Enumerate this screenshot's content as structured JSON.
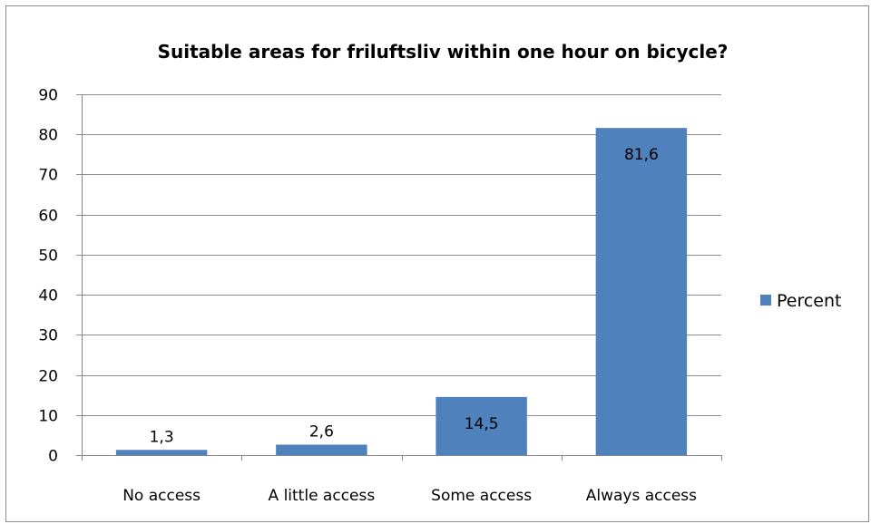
{
  "chart_data": {
    "type": "bar",
    "title": "Suitable areas for friluftsliv within one hour on bicycle?",
    "categories": [
      "No access",
      "A little access",
      "Some access",
      "Always access"
    ],
    "series": [
      {
        "name": "Percent",
        "values": [
          1.3,
          2.6,
          14.5,
          81.6
        ],
        "value_labels": [
          "1,3",
          "2,6",
          "14,5",
          "81,6"
        ],
        "color": "#4F81BD"
      }
    ],
    "xlabel": "",
    "ylabel": "",
    "ylim": [
      0,
      90
    ],
    "yticks": [
      "0",
      "10",
      "20",
      "30",
      "40",
      "50",
      "60",
      "70",
      "80",
      "90"
    ],
    "grid": true,
    "legend_position": "right"
  }
}
